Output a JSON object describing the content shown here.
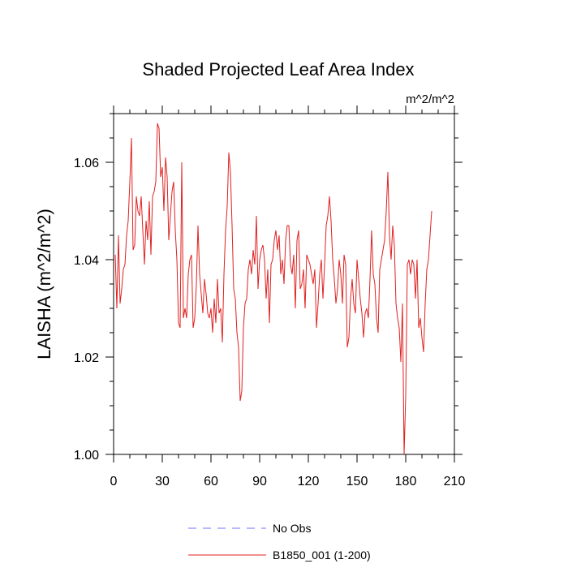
{
  "chart_data": {
    "type": "line",
    "title": "Shaded Projected Leaf Area Index",
    "units": "m^2/m^2",
    "xlabel": "",
    "ylabel": "LAISHA  (m^2/m^2)",
    "xlim": [
      0,
      210
    ],
    "ylim": [
      1.0,
      1.07
    ],
    "xticks": [
      0,
      30,
      60,
      90,
      120,
      150,
      180,
      210
    ],
    "xtick_labels": [
      "0",
      "30",
      "60",
      "90",
      "120",
      "150",
      "180",
      "210"
    ],
    "yticks": [
      1.0,
      1.02,
      1.04,
      1.06
    ],
    "ytick_labels": [
      "1.00",
      "1.02",
      "1.04",
      "1.06"
    ],
    "grid": false,
    "legend": {
      "placement": "bottom",
      "entries": [
        {
          "label": "No Obs",
          "color": "#7070ff",
          "style": "dashed"
        },
        {
          "label": "B1850_001 (1-200)",
          "color": "#e02020",
          "style": "solid"
        }
      ]
    },
    "series": [
      {
        "name": "B1850_001 (1-200)",
        "color": "#e02020",
        "x_start": 1,
        "x_step": 1,
        "values": [
          1.041,
          1.03,
          1.045,
          1.031,
          1.034,
          1.038,
          1.039,
          1.045,
          1.048,
          1.056,
          1.065,
          1.042,
          1.043,
          1.053,
          1.05,
          1.049,
          1.053,
          1.046,
          1.039,
          1.048,
          1.044,
          1.052,
          1.041,
          1.053,
          1.054,
          1.056,
          1.068,
          1.067,
          1.057,
          1.059,
          1.05,
          1.061,
          1.057,
          1.044,
          1.049,
          1.054,
          1.056,
          1.046,
          1.04,
          1.027,
          1.026,
          1.06,
          1.028,
          1.03,
          1.028,
          1.037,
          1.04,
          1.041,
          1.026,
          1.028,
          1.035,
          1.047,
          1.037,
          1.033,
          1.029,
          1.036,
          1.033,
          1.029,
          1.028,
          1.03,
          1.025,
          1.032,
          1.027,
          1.036,
          1.029,
          1.03,
          1.023,
          1.037,
          1.046,
          1.051,
          1.062,
          1.058,
          1.047,
          1.034,
          1.032,
          1.025,
          1.022,
          1.011,
          1.013,
          1.026,
          1.031,
          1.032,
          1.038,
          1.04,
          1.037,
          1.042,
          1.039,
          1.049,
          1.034,
          1.04,
          1.042,
          1.043,
          1.04,
          1.032,
          1.038,
          1.027,
          1.039,
          1.04,
          1.044,
          1.046,
          1.042,
          1.045,
          1.037,
          1.04,
          1.035,
          1.044,
          1.047,
          1.047,
          1.039,
          1.037,
          1.041,
          1.03,
          1.044,
          1.046,
          1.034,
          1.035,
          1.038,
          1.03,
          1.041,
          1.04,
          1.039,
          1.037,
          1.035,
          1.038,
          1.026,
          1.031,
          1.037,
          1.04,
          1.032,
          1.039,
          1.047,
          1.049,
          1.053,
          1.048,
          1.04,
          1.036,
          1.031,
          1.034,
          1.04,
          1.037,
          1.031,
          1.041,
          1.039,
          1.022,
          1.024,
          1.032,
          1.036,
          1.031,
          1.029,
          1.04,
          1.036,
          1.032,
          1.029,
          1.024,
          1.029,
          1.03,
          1.028,
          1.036,
          1.046,
          1.037,
          1.035,
          1.028,
          1.025,
          1.038,
          1.04,
          1.042,
          1.044,
          1.05,
          1.058,
          1.045,
          1.04,
          1.047,
          1.043,
          1.031,
          1.028,
          1.026,
          1.019,
          1.031,
          1.0,
          1.012,
          1.039,
          1.04,
          1.037,
          1.04,
          1.039,
          1.032,
          1.04,
          1.026,
          1.028,
          1.024,
          1.021,
          1.031,
          1.038,
          1.04,
          1.045,
          1.05
        ]
      }
    ]
  }
}
